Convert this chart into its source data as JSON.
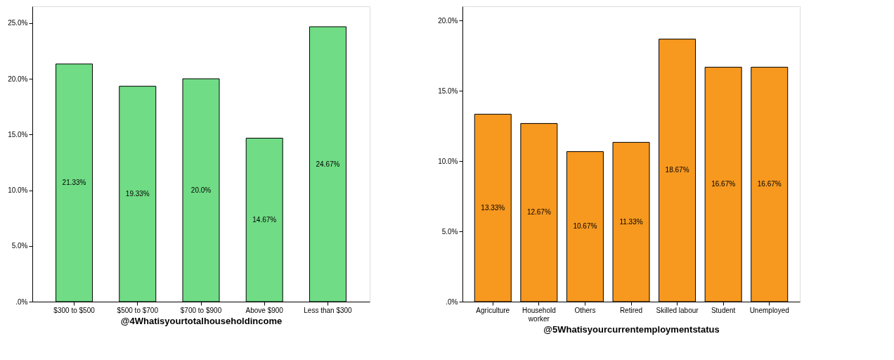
{
  "chart_data": [
    {
      "type": "bar",
      "xlabel": "@4Whatisyourtotalhouseholdincome",
      "categories": [
        "$300 to $500",
        "$500 to $700",
        "$700 to $900",
        "Above $900",
        "Less than $300"
      ],
      "series": [
        {
          "color": "#70dc85",
          "values": [
            21.33,
            19.33,
            20.0,
            14.67,
            24.67
          ],
          "value_labels": [
            "21.33%",
            "19.33%",
            "20.0%",
            "14.67%",
            "24.67%"
          ]
        }
      ],
      "ylim": [
        0,
        26.5
      ],
      "yticks": [
        {
          "value": 0,
          "label": ".0%"
        },
        {
          "value": 5,
          "label": "5.0%"
        },
        {
          "value": 10,
          "label": "10.0%"
        },
        {
          "value": 15,
          "label": "15.0%"
        },
        {
          "value": 20,
          "label": "20.0%"
        },
        {
          "value": 25,
          "label": "25.0%"
        }
      ],
      "grid": false
    },
    {
      "type": "bar",
      "xlabel": "@5Whatisyourcurrentemploymentstatus",
      "categories": [
        "Agriculture",
        "Household worker",
        "Others",
        "Retired",
        "Skilled labour",
        "Student",
        "Unemployed"
      ],
      "series": [
        {
          "color": "#f7981f",
          "values": [
            13.33,
            12.67,
            10.67,
            11.33,
            18.67,
            16.67,
            16.67
          ],
          "value_labels": [
            "13.33%",
            "12.67%",
            "10.67%",
            "11.33%",
            "18.67%",
            "16.67%",
            "16.67%"
          ]
        }
      ],
      "ylim": [
        0,
        21
      ],
      "yticks": [
        {
          "value": 0,
          "label": ".0%"
        },
        {
          "value": 5,
          "label": "5.0%"
        },
        {
          "value": 10,
          "label": "10.0%"
        },
        {
          "value": 15,
          "label": "15.0%"
        },
        {
          "value": 20,
          "label": "20.0%"
        }
      ],
      "grid": false
    }
  ]
}
